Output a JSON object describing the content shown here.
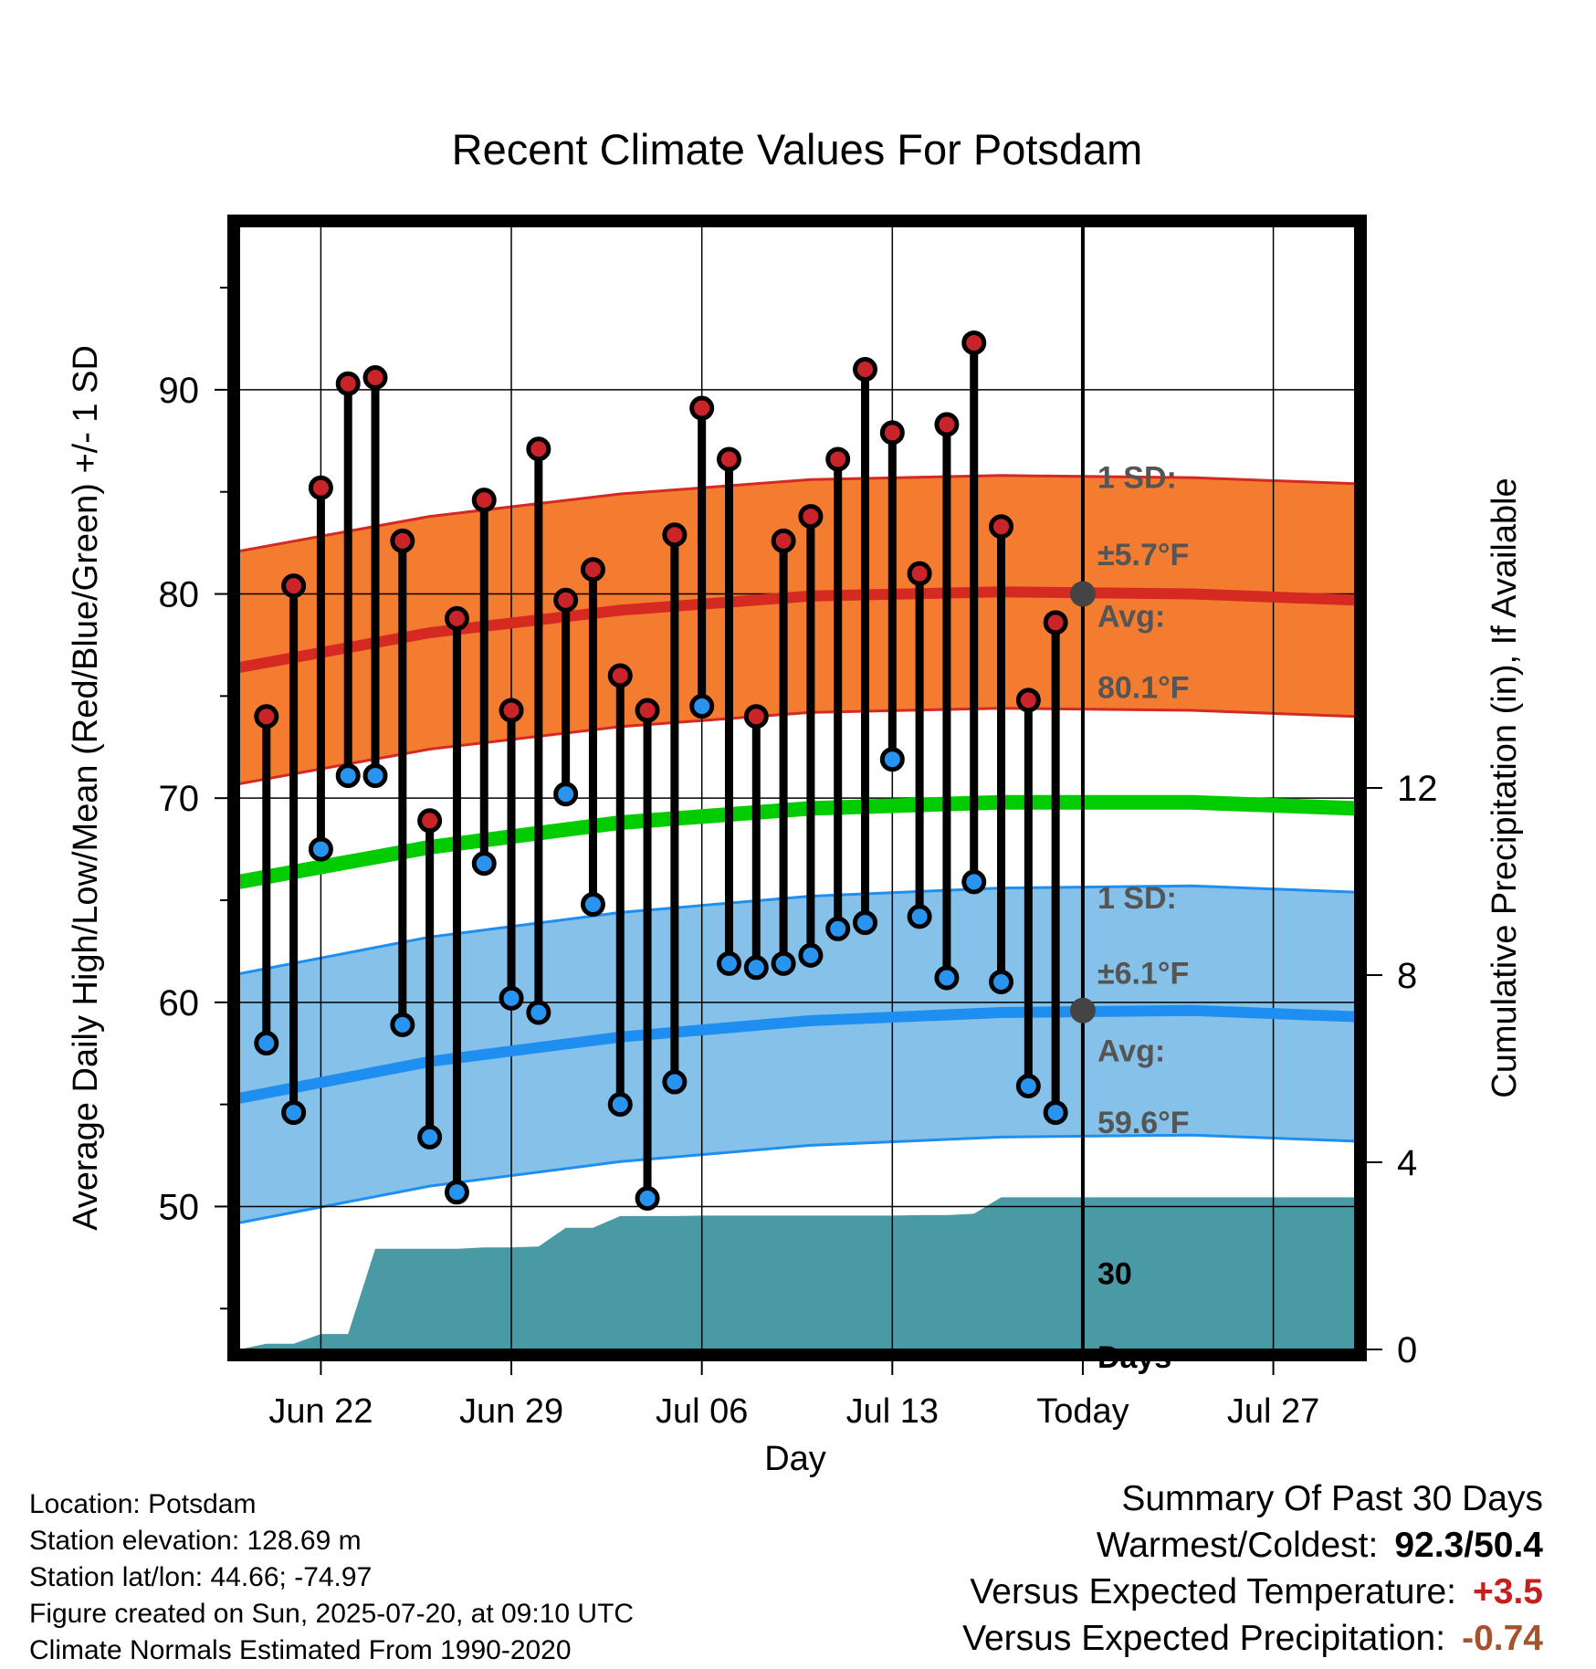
{
  "chart_data": {
    "type": "line",
    "title": "Recent Climate Values For Potsdam",
    "xlabel": "Day",
    "ylabel": "Average Daily High/Low/Mean (Red/Blue/Green) +/- 1 SD",
    "y2label": "Cumulative Precipitation (in), If Available",
    "ylim": [
      43,
      98
    ],
    "y2lim": [
      0,
      24
    ],
    "yticks": [
      50,
      60,
      70,
      80,
      90
    ],
    "y2ticks": [
      0,
      4,
      8,
      12
    ],
    "xtick_labels": [
      {
        "label": "Jun 22",
        "date": "2025-06-22"
      },
      {
        "label": "Jun 29",
        "date": "2025-06-29"
      },
      {
        "label": "Jul 06",
        "date": "2025-07-06"
      },
      {
        "label": "Jul 13",
        "date": "2025-07-13"
      },
      {
        "label": "Today",
        "date": "2025-07-20"
      },
      {
        "label": "Jul 27",
        "date": "2025-07-27"
      }
    ],
    "today": "2025-07-20",
    "x_range": [
      "2025-06-19",
      "2025-07-30"
    ],
    "daily_dates": [
      "2025-06-20",
      "2025-06-21",
      "2025-06-22",
      "2025-06-23",
      "2025-06-24",
      "2025-06-25",
      "2025-06-26",
      "2025-06-27",
      "2025-06-28",
      "2025-06-29",
      "2025-06-30",
      "2025-07-01",
      "2025-07-02",
      "2025-07-03",
      "2025-07-04",
      "2025-07-05",
      "2025-07-06",
      "2025-07-07",
      "2025-07-08",
      "2025-07-09",
      "2025-07-10",
      "2025-07-11",
      "2025-07-12",
      "2025-07-13",
      "2025-07-14",
      "2025-07-15",
      "2025-07-16",
      "2025-07-17",
      "2025-07-18",
      "2025-07-19"
    ],
    "daily_high": [
      74.0,
      80.4,
      85.2,
      90.3,
      90.6,
      82.6,
      68.9,
      78.8,
      84.6,
      74.3,
      87.1,
      79.7,
      81.2,
      76.0,
      74.3,
      82.9,
      89.1,
      86.6,
      74.0,
      82.6,
      83.8,
      86.6,
      91.0,
      87.9,
      81.0,
      88.3,
      92.3,
      83.3,
      74.8,
      78.6
    ],
    "daily_low": [
      58.0,
      54.6,
      67.5,
      71.1,
      71.1,
      58.9,
      53.4,
      50.7,
      66.8,
      60.2,
      59.5,
      70.2,
      64.8,
      55.0,
      50.4,
      56.1,
      74.5,
      61.9,
      61.7,
      61.9,
      62.3,
      63.6,
      63.9,
      71.9,
      64.2,
      61.2,
      65.9,
      61.0,
      55.9,
      54.6
    ],
    "normal_dates": [
      "2025-06-19",
      "2025-06-26",
      "2025-07-03",
      "2025-07-10",
      "2025-07-17",
      "2025-07-24",
      "2025-07-30"
    ],
    "normal_high": [
      76.4,
      78.1,
      79.2,
      79.9,
      80.1,
      80.0,
      79.7
    ],
    "normal_high_sd": 5.7,
    "normal_low": [
      55.3,
      57.1,
      58.3,
      59.1,
      59.5,
      59.6,
      59.3
    ],
    "normal_low_sd": 6.1,
    "normal_mean": [
      65.9,
      67.6,
      68.8,
      69.5,
      69.8,
      69.8,
      69.5
    ],
    "precip_dates": [
      "2025-06-19",
      "2025-06-20",
      "2025-06-21",
      "2025-06-22",
      "2025-06-23",
      "2025-06-24",
      "2025-06-25",
      "2025-06-26",
      "2025-06-27",
      "2025-06-28",
      "2025-06-29",
      "2025-06-30",
      "2025-07-01",
      "2025-07-02",
      "2025-07-03",
      "2025-07-04",
      "2025-07-05",
      "2025-07-06",
      "2025-07-07",
      "2025-07-08",
      "2025-07-09",
      "2025-07-10",
      "2025-07-11",
      "2025-07-12",
      "2025-07-13",
      "2025-07-14",
      "2025-07-15",
      "2025-07-16",
      "2025-07-17",
      "2025-07-18",
      "2025-07-19",
      "2025-07-30"
    ],
    "precip_cumulative": [
      0.0,
      0.12,
      0.12,
      0.33,
      0.33,
      2.15,
      2.15,
      2.15,
      2.15,
      2.18,
      2.18,
      2.2,
      2.6,
      2.6,
      2.85,
      2.85,
      2.85,
      2.86,
      2.86,
      2.86,
      2.86,
      2.86,
      2.86,
      2.86,
      2.86,
      2.87,
      2.87,
      2.9,
      3.25,
      3.25,
      3.25,
      3.25
    ],
    "annotations": [
      {
        "name": "high-sd",
        "line1": "1 SD:",
        "line2": "±5.7°F"
      },
      {
        "name": "high-avg",
        "line1": "Avg:",
        "line2": "80.1°F"
      },
      {
        "name": "low-sd",
        "line1": "1 SD:",
        "line2": "±6.1°F"
      },
      {
        "name": "low-avg",
        "line1": "Avg:",
        "line2": "59.6°F"
      },
      {
        "name": "days",
        "line1": "30",
        "line2": "Days"
      }
    ],
    "colors": {
      "high_band": "#f47c30",
      "high_line": "#d42a22",
      "low_band": "#85c1e9",
      "low_line": "#1e8ff0",
      "mean_line": "#00cc00",
      "precip_fill": "#4a9aa5",
      "high_dot": "#c8242a",
      "low_dot": "#2894f0",
      "annotation_text": "#555555",
      "avg_marker": "#444444"
    },
    "grid": true
  },
  "info": {
    "location": "Location: Potsdam",
    "elevation": "Station elevation: 128.69 m",
    "latlon": "Station lat/lon: 44.66; -74.97",
    "created": "Figure created on Sun, 2025-07-20, at 09:10 UTC",
    "normals": "Climate Normals Estimated From 1990-2020"
  },
  "summary": {
    "heading": "Summary Of Past 30 Days",
    "warm_cold_label": "Warmest/Coldest:",
    "warm_cold_value": "92.3/50.4",
    "temp_label": "Versus Expected Temperature:",
    "temp_value": "+3.5",
    "precip_label": "Versus Expected Precipitation:",
    "precip_value": "-0.74"
  }
}
